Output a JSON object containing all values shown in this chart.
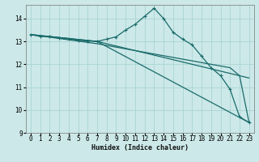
{
  "xlabel": "Humidex (Indice chaleur)",
  "bg_color": "#cce8e8",
  "line_color": "#1a6b6b",
  "grid_color": "#aad4d4",
  "xlim": [
    -0.5,
    23.5
  ],
  "ylim": [
    9.0,
    14.6
  ],
  "yticks": [
    9,
    10,
    11,
    12,
    13,
    14
  ],
  "xticks": [
    0,
    1,
    2,
    3,
    4,
    5,
    6,
    7,
    8,
    9,
    10,
    11,
    12,
    13,
    14,
    15,
    16,
    17,
    18,
    19,
    20,
    21,
    22,
    23
  ],
  "series_main": {
    "x": [
      0,
      1,
      2,
      3,
      4,
      5,
      6,
      7,
      8,
      9,
      10,
      11,
      12,
      13,
      14,
      15,
      16,
      17,
      18,
      19,
      20,
      21,
      22,
      23
    ],
    "y": [
      13.3,
      13.22,
      13.22,
      13.15,
      13.12,
      13.05,
      13.02,
      13.0,
      13.1,
      13.2,
      13.5,
      13.75,
      14.1,
      14.45,
      14.0,
      13.4,
      13.1,
      12.85,
      12.35,
      11.85,
      11.5,
      10.9,
      9.7,
      9.45
    ]
  },
  "series_line1": {
    "x": [
      0,
      7,
      23
    ],
    "y": [
      13.3,
      13.0,
      9.45
    ]
  },
  "series_line2": {
    "x": [
      0,
      7,
      23
    ],
    "y": [
      13.3,
      13.0,
      11.4
    ]
  },
  "series_line3": {
    "x": [
      0,
      7,
      21,
      22,
      23
    ],
    "y": [
      13.3,
      12.9,
      11.85,
      11.5,
      9.45
    ]
  }
}
